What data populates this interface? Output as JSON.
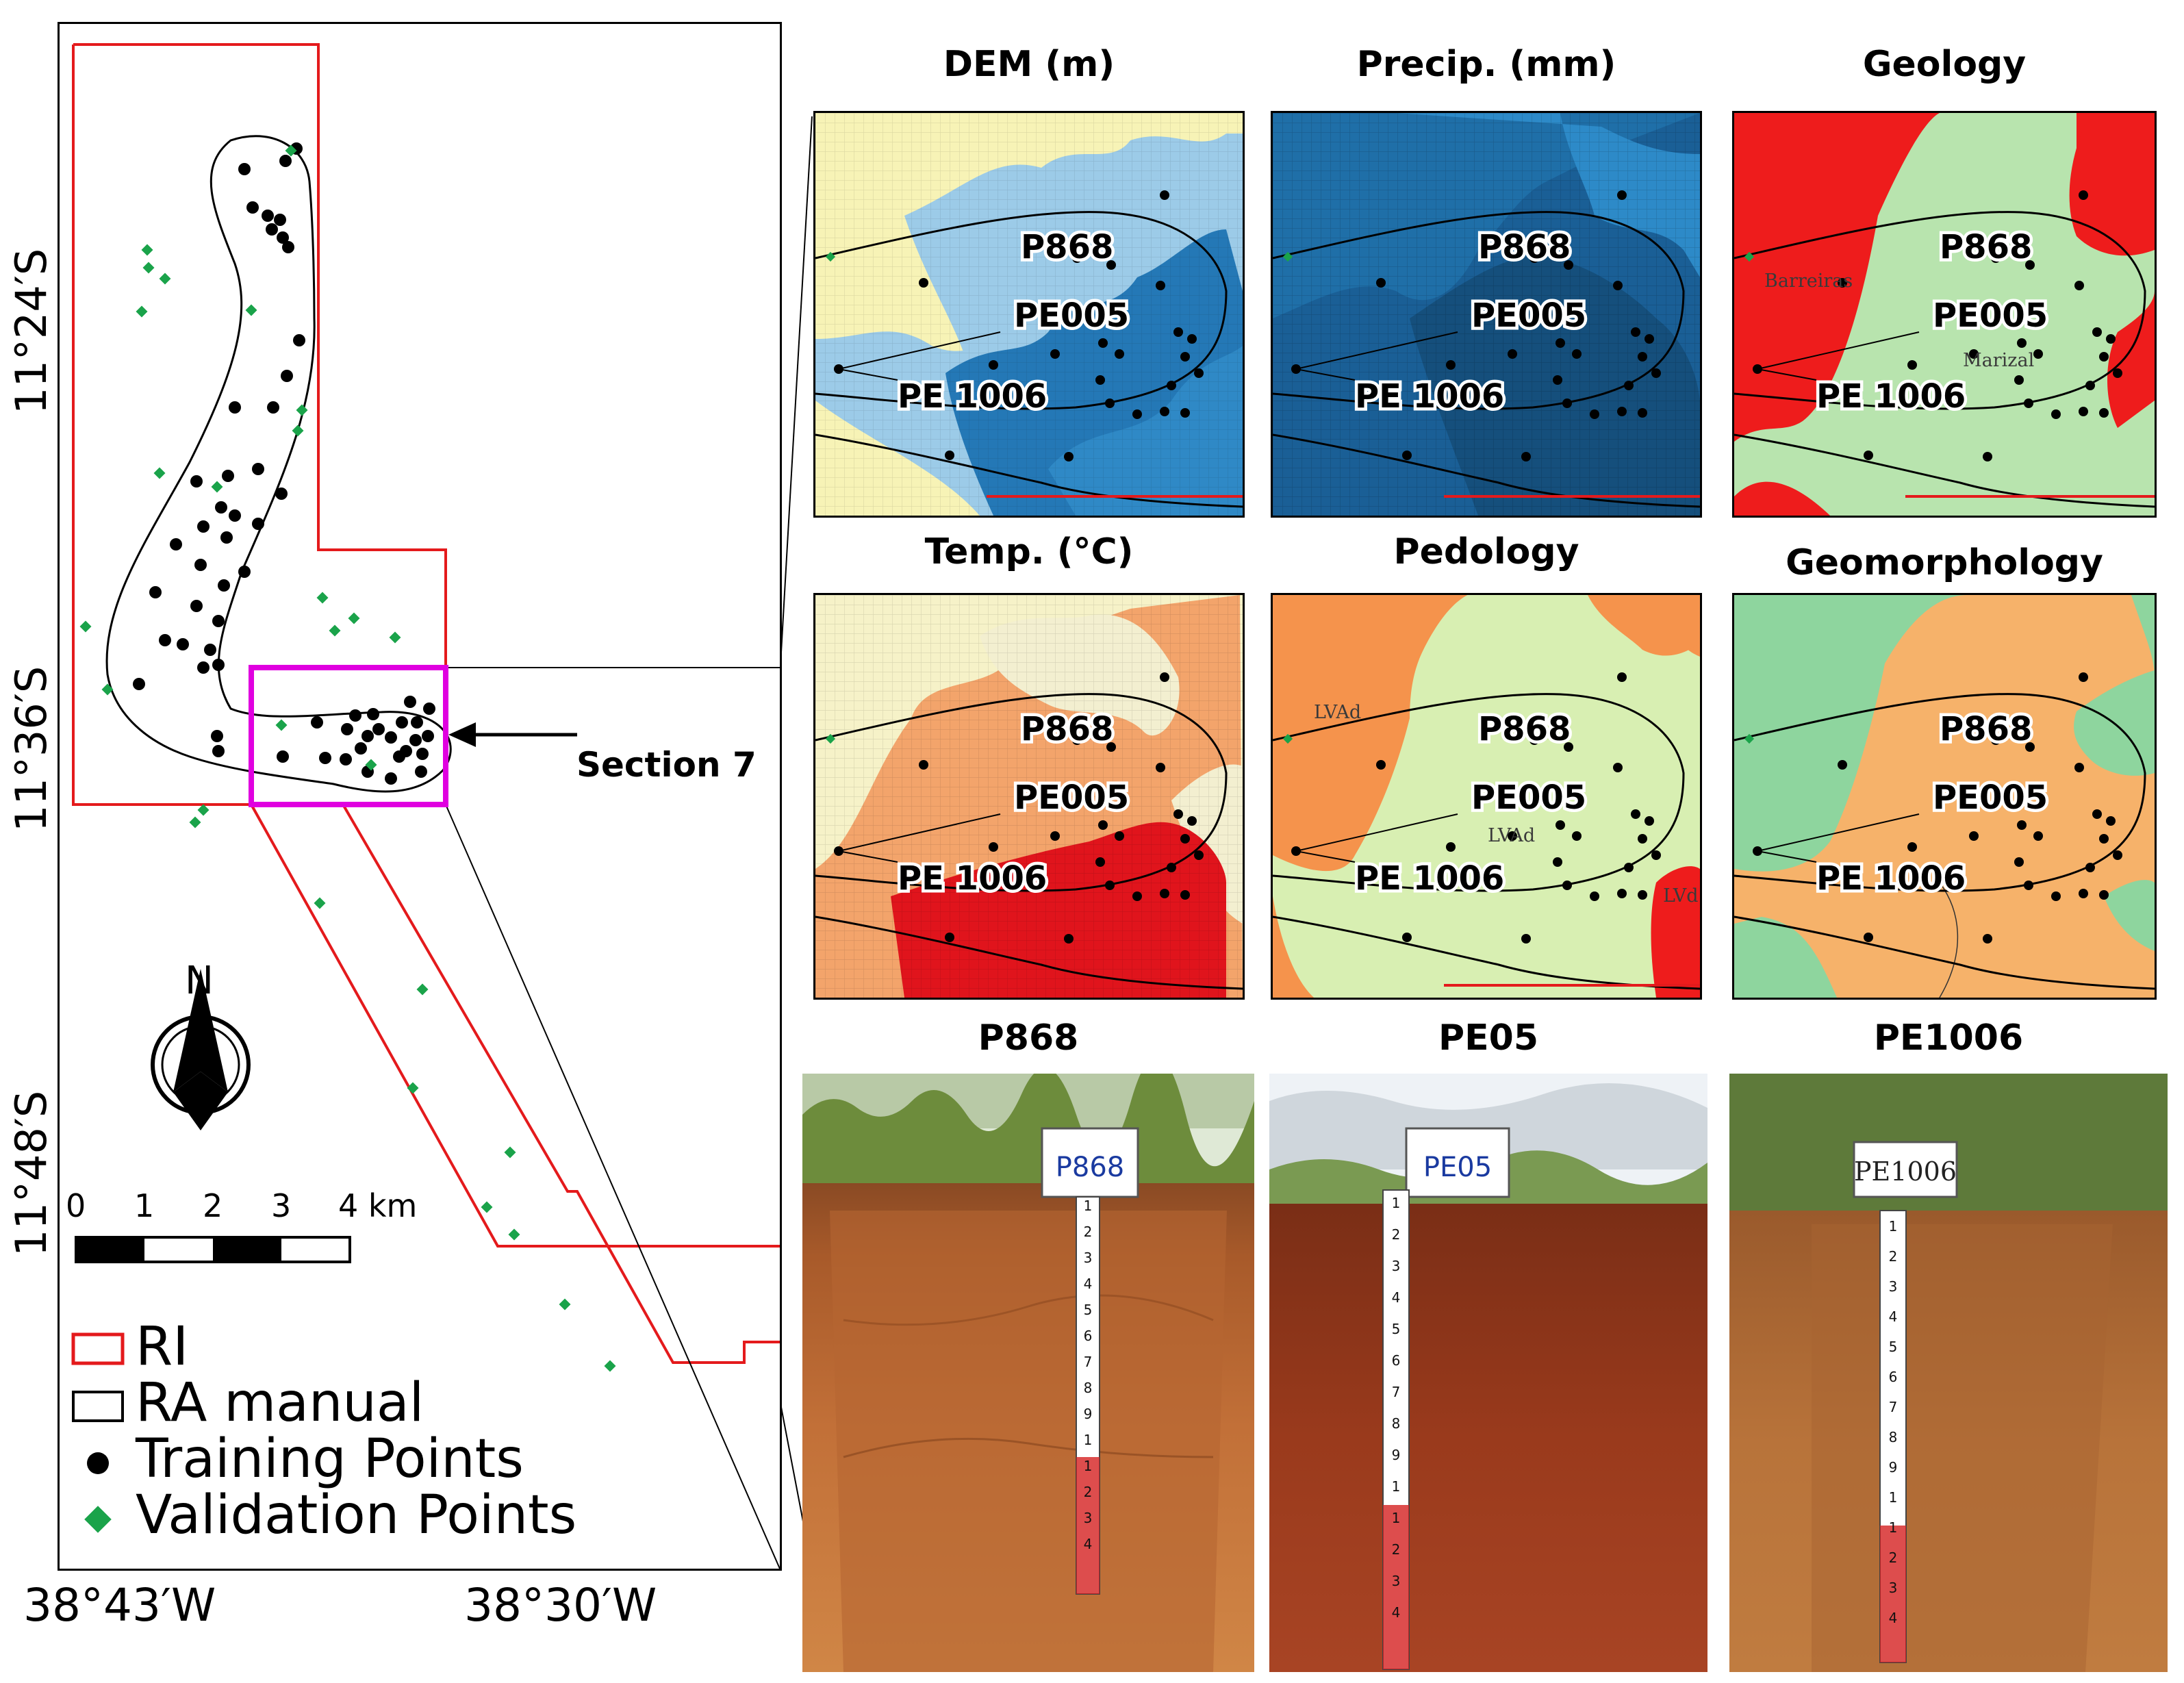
{
  "main_map": {
    "lat_labels": [
      "11°24′S",
      "11°36′S",
      "11°48′S"
    ],
    "lon_labels": [
      "38°43′W",
      "38°30′W"
    ],
    "section_label": "Section 7",
    "north_label": "N",
    "scale": {
      "ticks": [
        "0",
        "1",
        "2",
        "3",
        "4 km"
      ]
    },
    "legend": [
      {
        "label": "RI",
        "symbol": "red-outline-rect"
      },
      {
        "label": "RA manual",
        "symbol": "black-outline-rect"
      },
      {
        "label": "Training Points",
        "symbol": "black-dot"
      },
      {
        "label": "Validation Points",
        "symbol": "green-diamond"
      }
    ]
  },
  "panels": [
    {
      "title": "DEM (m)"
    },
    {
      "title": "Precip. (mm)"
    },
    {
      "title": "Geology",
      "unit_labels": [
        "Barreiras",
        "Marizal"
      ]
    },
    {
      "title": "Temp. (°C)"
    },
    {
      "title": "Pedology",
      "unit_labels": [
        "LVAd",
        "LVAd",
        "LVd"
      ]
    },
    {
      "title": "Geomorphology"
    }
  ],
  "point_labels": [
    "P868",
    "PE005",
    "PE 1006"
  ],
  "photos": [
    {
      "title": "P868",
      "sign": "P868"
    },
    {
      "title": "PE05",
      "sign": "PE05"
    },
    {
      "title": "PE1006",
      "sign": "PE1006"
    }
  ],
  "ruler_numbers": [
    "1",
    "2",
    "3",
    "4",
    "5",
    "6",
    "7",
    "8",
    "9",
    "1",
    "1",
    "2",
    "3",
    "4"
  ],
  "colors": {
    "ri_boundary": "#e41a1c",
    "section_box": "#e000e0",
    "training_points": "#000000",
    "validation_points": "#1aa34a"
  }
}
